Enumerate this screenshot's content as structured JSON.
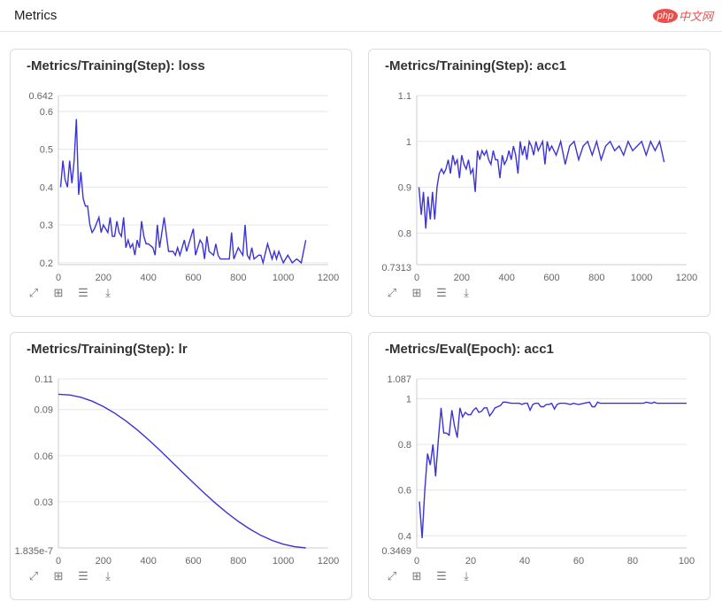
{
  "header": {
    "title": "Metrics",
    "watermark_logo": "php",
    "watermark_text": "中文网"
  },
  "toolbar_icons": [
    "expand-icon",
    "fit-icon",
    "filter-icon",
    "download-icon"
  ],
  "line_color": "#3b33d6",
  "chart_data": [
    {
      "type": "line",
      "title": "-Metrics/Training(Step): loss",
      "xlim": [
        0,
        1200
      ],
      "ylim": [
        0.195,
        0.642
      ],
      "xticks": [
        0,
        200,
        400,
        600,
        800,
        1000,
        1200
      ],
      "yticks": [
        {
          "v": 0.642,
          "label": "0.642"
        },
        {
          "v": 0.6,
          "label": "0.6"
        },
        {
          "v": 0.5,
          "label": "0.5"
        },
        {
          "v": 0.4,
          "label": "0.4"
        },
        {
          "v": 0.3,
          "label": "0.3"
        },
        {
          "v": 0.2,
          "label": "0.2"
        }
      ],
      "x": [
        10,
        20,
        30,
        40,
        50,
        60,
        70,
        80,
        90,
        100,
        110,
        120,
        130,
        140,
        150,
        160,
        180,
        190,
        200,
        220,
        230,
        240,
        250,
        260,
        270,
        280,
        290,
        300,
        310,
        320,
        330,
        340,
        350,
        360,
        370,
        380,
        390,
        400,
        420,
        430,
        440,
        450,
        470,
        490,
        510,
        520,
        530,
        540,
        560,
        570,
        600,
        610,
        630,
        640,
        650,
        660,
        670,
        690,
        700,
        710,
        720,
        740,
        760,
        770,
        780,
        800,
        820,
        830,
        840,
        850,
        860,
        870,
        890,
        900,
        910,
        930,
        950,
        960,
        970,
        980,
        1000,
        1020,
        1040,
        1060,
        1080,
        1100
      ],
      "y": [
        0.4,
        0.47,
        0.42,
        0.4,
        0.47,
        0.41,
        0.47,
        0.58,
        0.38,
        0.44,
        0.37,
        0.35,
        0.35,
        0.3,
        0.28,
        0.29,
        0.32,
        0.28,
        0.3,
        0.28,
        0.32,
        0.27,
        0.27,
        0.31,
        0.28,
        0.27,
        0.32,
        0.24,
        0.26,
        0.24,
        0.25,
        0.22,
        0.26,
        0.24,
        0.31,
        0.27,
        0.25,
        0.25,
        0.24,
        0.22,
        0.3,
        0.24,
        0.32,
        0.23,
        0.23,
        0.22,
        0.24,
        0.22,
        0.26,
        0.23,
        0.29,
        0.22,
        0.26,
        0.25,
        0.21,
        0.27,
        0.23,
        0.22,
        0.25,
        0.22,
        0.21,
        0.21,
        0.21,
        0.28,
        0.21,
        0.24,
        0.22,
        0.3,
        0.22,
        0.21,
        0.24,
        0.21,
        0.22,
        0.22,
        0.2,
        0.25,
        0.21,
        0.23,
        0.21,
        0.23,
        0.2,
        0.22,
        0.2,
        0.21,
        0.2,
        0.26
      ]
    },
    {
      "type": "line",
      "title": "-Metrics/Training(Step): acc1",
      "xlim": [
        0,
        1200
      ],
      "ylim": [
        0.7313,
        1.1
      ],
      "xticks": [
        0,
        200,
        400,
        600,
        800,
        1000,
        1200
      ],
      "yticks": [
        {
          "v": 1.1,
          "label": "1.1"
        },
        {
          "v": 1,
          "label": "1"
        },
        {
          "v": 0.9,
          "label": "0.9"
        },
        {
          "v": 0.8,
          "label": "0.8"
        },
        {
          "v": 0.7313,
          "label": "0.7313"
        }
      ],
      "x": [
        10,
        20,
        30,
        40,
        50,
        60,
        70,
        80,
        90,
        100,
        110,
        120,
        130,
        140,
        150,
        160,
        170,
        180,
        190,
        200,
        210,
        220,
        230,
        240,
        250,
        260,
        270,
        280,
        290,
        300,
        310,
        320,
        330,
        340,
        350,
        360,
        370,
        380,
        390,
        400,
        410,
        420,
        430,
        440,
        450,
        460,
        470,
        480,
        490,
        500,
        510,
        520,
        530,
        540,
        550,
        560,
        570,
        580,
        590,
        600,
        620,
        640,
        660,
        680,
        700,
        720,
        740,
        760,
        780,
        800,
        820,
        840,
        860,
        880,
        900,
        920,
        940,
        960,
        980,
        1000,
        1020,
        1040,
        1060,
        1080,
        1100
      ],
      "y": [
        0.9,
        0.84,
        0.89,
        0.81,
        0.88,
        0.83,
        0.89,
        0.83,
        0.9,
        0.93,
        0.94,
        0.93,
        0.94,
        0.96,
        0.93,
        0.97,
        0.95,
        0.96,
        0.92,
        0.97,
        0.95,
        0.94,
        0.96,
        0.93,
        0.94,
        0.89,
        0.98,
        0.96,
        0.98,
        0.97,
        0.98,
        0.96,
        0.95,
        0.98,
        0.96,
        0.96,
        0.92,
        0.97,
        0.95,
        0.96,
        0.98,
        0.96,
        0.99,
        0.97,
        0.93,
        1.0,
        0.97,
        0.99,
        0.96,
        1.0,
        0.99,
        0.97,
        1.0,
        0.98,
        0.99,
        1.0,
        0.95,
        1.0,
        0.98,
        0.99,
        0.97,
        1.0,
        0.95,
        0.99,
        1.0,
        0.96,
        0.99,
        1.0,
        0.97,
        1.0,
        0.96,
        0.99,
        1.0,
        0.98,
        0.99,
        0.97,
        1.0,
        0.98,
        0.99,
        1.0,
        0.97,
        1.0,
        0.98,
        1.0,
        0.955
      ]
    },
    {
      "type": "line",
      "title": "-Metrics/Training(Step): lr",
      "xlim": [
        0,
        1200
      ],
      "ylim": [
        0,
        0.11
      ],
      "xticks": [
        0,
        200,
        400,
        600,
        800,
        1000,
        1200
      ],
      "yticks": [
        {
          "v": 0.11,
          "label": "0.11"
        },
        {
          "v": 0.09,
          "label": "0.09"
        },
        {
          "v": 0.06,
          "label": "0.06"
        },
        {
          "v": 0.03,
          "label": "0.03"
        },
        {
          "v": 0,
          "label": "1.835e-7"
        }
      ],
      "x": [
        0,
        50,
        100,
        150,
        200,
        250,
        300,
        350,
        400,
        450,
        500,
        550,
        600,
        650,
        700,
        750,
        800,
        850,
        900,
        950,
        1000,
        1050,
        1100
      ],
      "y": [
        0.1,
        0.0995,
        0.098,
        0.0955,
        0.092,
        0.0877,
        0.0826,
        0.0768,
        0.0705,
        0.0637,
        0.0566,
        0.0495,
        0.0424,
        0.0355,
        0.0289,
        0.0228,
        0.0173,
        0.0124,
        0.0082,
        0.0049,
        0.0024,
        0.0008,
        2e-07
      ]
    },
    {
      "type": "line",
      "title": "-Metrics/Eval(Epoch): acc1",
      "xlim": [
        0,
        100
      ],
      "ylim": [
        0.3469,
        1.087
      ],
      "xticks": [
        0,
        20,
        40,
        60,
        80,
        100
      ],
      "yticks": [
        {
          "v": 1.087,
          "label": "1.087"
        },
        {
          "v": 1,
          "label": "1"
        },
        {
          "v": 0.8,
          "label": "0.8"
        },
        {
          "v": 0.6,
          "label": "0.6"
        },
        {
          "v": 0.4,
          "label": "0.4"
        },
        {
          "v": 0.3469,
          "label": "0.3469"
        }
      ],
      "x": [
        1,
        2,
        3,
        4,
        5,
        6,
        7,
        8,
        9,
        10,
        11,
        12,
        13,
        14,
        15,
        16,
        17,
        18,
        19,
        20,
        21,
        22,
        23,
        24,
        25,
        26,
        27,
        28,
        29,
        30,
        31,
        32,
        33,
        35,
        38,
        39,
        40,
        41,
        42,
        43,
        44,
        45,
        46,
        47,
        48,
        49,
        50,
        51,
        52,
        53,
        55,
        57,
        58,
        60,
        62,
        64,
        65,
        66,
        67,
        68,
        84,
        85,
        87,
        88,
        89,
        100
      ],
      "y": [
        0.55,
        0.39,
        0.6,
        0.76,
        0.71,
        0.8,
        0.66,
        0.82,
        0.96,
        0.85,
        0.85,
        0.84,
        0.95,
        0.88,
        0.83,
        0.96,
        0.92,
        0.94,
        0.93,
        0.93,
        0.95,
        0.96,
        0.94,
        0.945,
        0.96,
        0.96,
        0.925,
        0.94,
        0.96,
        0.965,
        0.97,
        0.985,
        0.985,
        0.98,
        0.98,
        0.975,
        0.98,
        0.98,
        0.95,
        0.975,
        0.98,
        0.98,
        0.965,
        0.965,
        0.975,
        0.975,
        0.98,
        0.955,
        0.975,
        0.98,
        0.98,
        0.975,
        0.98,
        0.975,
        0.98,
        0.985,
        0.965,
        0.965,
        0.985,
        0.98,
        0.98,
        0.985,
        0.98,
        0.985,
        0.98,
        0.98
      ]
    }
  ]
}
